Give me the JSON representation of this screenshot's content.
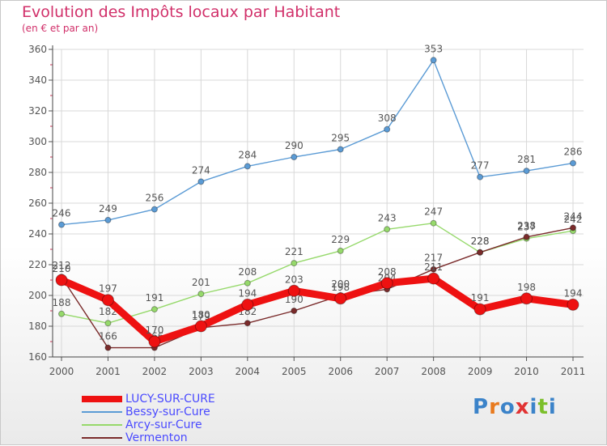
{
  "header": {
    "title": "Evolution des Impôts locaux par Habitant",
    "subtitle": "(en € et par an)"
  },
  "logo": {
    "letters": [
      "P",
      "r",
      "o",
      "x",
      "i",
      "t",
      "i"
    ],
    "colors": [
      "#3b83c9",
      "#e87a1e",
      "#3b83c9",
      "#e13333",
      "#3b83c9",
      "#7bbf2a",
      "#3b83c9"
    ]
  },
  "chart_data": {
    "type": "line",
    "title": "Evolution des Impôts locaux par Habitant",
    "subtitle": "(en € et par an)",
    "x": [
      "2000",
      "2001",
      "2002",
      "2003",
      "2004",
      "2005",
      "2006",
      "2007",
      "2008",
      "2009",
      "2010",
      "2011"
    ],
    "ylim": [
      160,
      360
    ],
    "yticks": [
      "160",
      "180",
      "200",
      "220",
      "240",
      "260",
      "280",
      "300",
      "320",
      "340",
      "360"
    ],
    "grid": true,
    "legend_position": "bottom-left",
    "series": [
      {
        "name": "Bessy-sur-Cure",
        "color": "#5b9bd5",
        "values": [
          246,
          249,
          256,
          274,
          284,
          290,
          295,
          308,
          353,
          277,
          281,
          286
        ],
        "labels": [
          "246",
          "249",
          "256",
          "274",
          "284",
          "290",
          "295",
          "308",
          "353",
          "277",
          "281",
          "286"
        ]
      },
      {
        "name": "Arcy-sur-Cure",
        "color": "#96d96b",
        "values": [
          188,
          182,
          191,
          201,
          208,
          221,
          229,
          243,
          247,
          228,
          237,
          242
        ],
        "labels": [
          "188",
          "182",
          "191",
          "201",
          "208",
          "221",
          "229",
          "243",
          "247",
          "228",
          "237",
          "242"
        ]
      },
      {
        "name": "Vermenton",
        "color": "#7a2b2b",
        "values": [
          212,
          166,
          166,
          179,
          182,
          190,
          200,
          204,
          217,
          228,
          238,
          244
        ],
        "labels": [
          "212",
          "166",
          "166",
          "179",
          "182",
          "190",
          "200",
          "204",
          "217",
          "228",
          "238",
          "244"
        ]
      },
      {
        "name": "LUCY-SUR-CURE",
        "color": "#ee1111",
        "values": [
          210,
          197,
          170,
          180,
          194,
          203,
          198,
          208,
          211,
          191,
          198,
          194
        ],
        "labels": [
          "210",
          "197",
          "170",
          "180",
          "194",
          "203",
          "198",
          "208",
          "211",
          "191",
          "198",
          "194"
        ]
      }
    ]
  }
}
